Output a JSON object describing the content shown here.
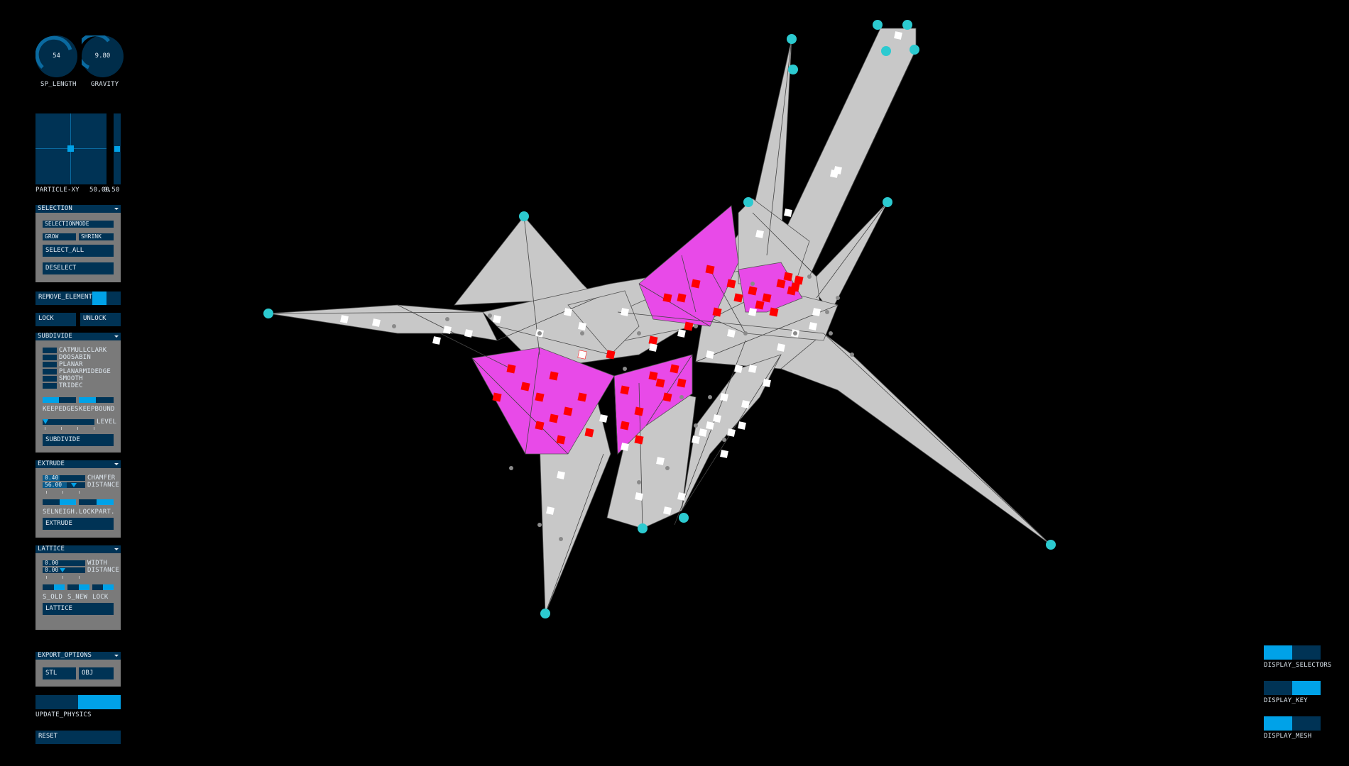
{
  "colors": {
    "background": "#000000",
    "panel_head": "#003355",
    "panel_body": "#7a7a7a",
    "accent": "#00a2e8",
    "mesh_face": "#c8c8c8",
    "selected_face": "#e84ae8",
    "selected_marker": "#ff0000",
    "anchor_node": "#2ccad0"
  },
  "knobs": [
    {
      "label": "SP_LENGTH",
      "value": "54"
    },
    {
      "label": "GRAVITY",
      "value": "9.80"
    }
  ],
  "particle_xy": {
    "label": "PARTICLE-XY",
    "value": "50,00",
    "value2": "0,50"
  },
  "selection": {
    "title": "SELECTION",
    "mode_label": "SELECTIONMODE",
    "grow_label": "GROW",
    "shrink_label": "SHRINK",
    "select_all_label": "SELECT_ALL",
    "deselect_label": "DESELECT"
  },
  "remove_element": {
    "label": "REMOVE_ELEMENT"
  },
  "lock_label": "LOCK",
  "unlock_label": "UNLOCK",
  "subdivide": {
    "title": "SUBDIVIDE",
    "options": [
      "CATMULLCLARK",
      "DOOSABIN",
      "PLANAR",
      "PLANARMIDEDGE",
      "SMOOTH",
      "TRIDEC"
    ],
    "keepedges_label": "KEEPEDGES",
    "keepbound_label": "KEEPBOUND",
    "level_label": "LEVEL",
    "button_label": "SUBDIVIDE"
  },
  "extrude": {
    "title": "EXTRUDE",
    "chamfer_value": "0.40",
    "chamfer_label": "CHAMFER",
    "distance_value": "56.00",
    "distance_label": "DISTANCE",
    "selneigh_label": "SELNEIGH.",
    "lockpart_label": "LOCKPART.",
    "button_label": "EXTRUDE"
  },
  "lattice": {
    "title": "LATTICE",
    "width_value": "0.00",
    "width_label": "WIDTH",
    "distance_value": "0.00",
    "distance_label": "DISTANCE",
    "s_old_label": "S_OLD",
    "s_new_label": "S_NEW",
    "lock_label": "LOCK",
    "button_label": "LATTICE"
  },
  "export_options": {
    "title": "EXPORT_OPTIONS",
    "stl_label": "STL",
    "obj_label": "OBJ"
  },
  "update_physics": {
    "label": "UPDATE_PHYSICS"
  },
  "reset_label": "RESET",
  "display_toggles": [
    {
      "label": "DISPLAY_SELECTORS"
    },
    {
      "label": "DISPLAY_KEY"
    },
    {
      "label": "DISPLAY_MESH"
    }
  ]
}
